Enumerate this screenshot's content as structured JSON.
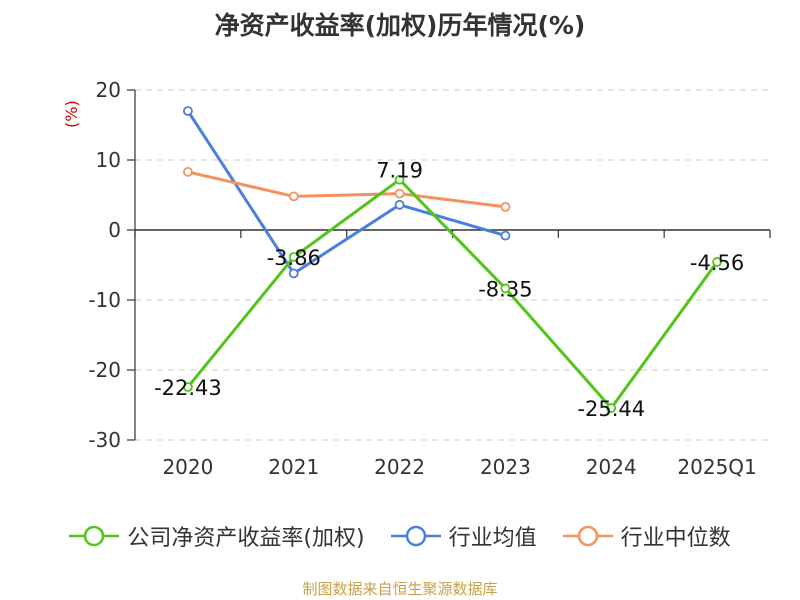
{
  "chart_data": {
    "type": "line",
    "title": "净资产收益率(加权)历年情况(%)",
    "ylabel": "(%)",
    "categories": [
      "2020",
      "2021",
      "2022",
      "2023",
      "2024",
      "2025Q1"
    ],
    "ylim": [
      -30,
      20
    ],
    "yticks": [
      20,
      10,
      0,
      -10,
      -20,
      -30
    ],
    "grid": true,
    "legend_position": "bottom",
    "series": [
      {
        "name": "公司净资产收益率(加权)",
        "color": "#52c41a",
        "values": [
          -22.43,
          -3.86,
          7.19,
          -8.35,
          -25.44,
          -4.56
        ],
        "labels": [
          "-22.43",
          "-3.86",
          "7.19",
          "-8.35",
          "-25.44",
          "-4.56"
        ]
      },
      {
        "name": "行业均值",
        "color": "#4a7fdc",
        "values": [
          17.0,
          -6.2,
          3.6,
          -0.8,
          null,
          null
        ]
      },
      {
        "name": "行业中位数",
        "color": "#f5915e",
        "values": [
          8.3,
          4.8,
          5.2,
          3.3,
          null,
          null
        ]
      }
    ]
  },
  "source": "制图数据来自恒生聚源数据库"
}
